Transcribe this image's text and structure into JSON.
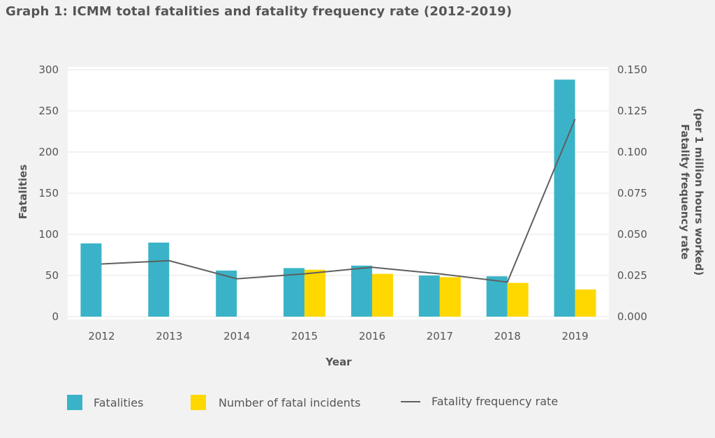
{
  "title": "Graph 1: ICMM total fatalities and fatality frequency rate (2012-2019)",
  "chart_data": {
    "type": "bar",
    "categories": [
      "2012",
      "2013",
      "2014",
      "2015",
      "2016",
      "2017",
      "2018",
      "2019"
    ],
    "series": [
      {
        "name": "Fatalities",
        "kind": "bar",
        "axis": "left",
        "color": "#3ab3c8",
        "values": [
          89,
          90,
          56,
          59,
          62,
          50,
          49,
          288
        ]
      },
      {
        "name": "Number of fatal incidents",
        "kind": "bar",
        "axis": "left",
        "color": "#ffd800",
        "values": [
          null,
          null,
          null,
          57,
          52,
          48,
          41,
          33
        ]
      },
      {
        "name": "Fatality frequency rate",
        "kind": "line",
        "axis": "right",
        "color": "#5f5f5f",
        "values": [
          0.032,
          0.034,
          0.023,
          0.026,
          0.03,
          0.026,
          0.021,
          0.12
        ]
      }
    ],
    "xlabel": "Year",
    "ylabel": "Fatalities",
    "ylabel_right": [
      "Fatality frequency rate",
      "(per 1 million hours worked)"
    ],
    "ylim": [
      0,
      300
    ],
    "ylim_right": [
      0,
      0.15
    ],
    "yticks": [
      "0",
      "50",
      "100",
      "150",
      "200",
      "250",
      "300"
    ],
    "yticks_right": [
      "0.000",
      "0.025",
      "0.050",
      "0.075",
      "0.100",
      "0.125",
      "0.150"
    ],
    "grid": true,
    "legend_position": "bottom"
  },
  "legend": {
    "fatalities": "Fatalities",
    "incidents": "Number of fatal incidents",
    "rate": "Fatality frequency rate"
  },
  "colors": {
    "fatalities": "#3ab3c8",
    "incidents": "#ffd800",
    "rate": "#5f5f5f",
    "plot_bg": "#ffffff"
  }
}
